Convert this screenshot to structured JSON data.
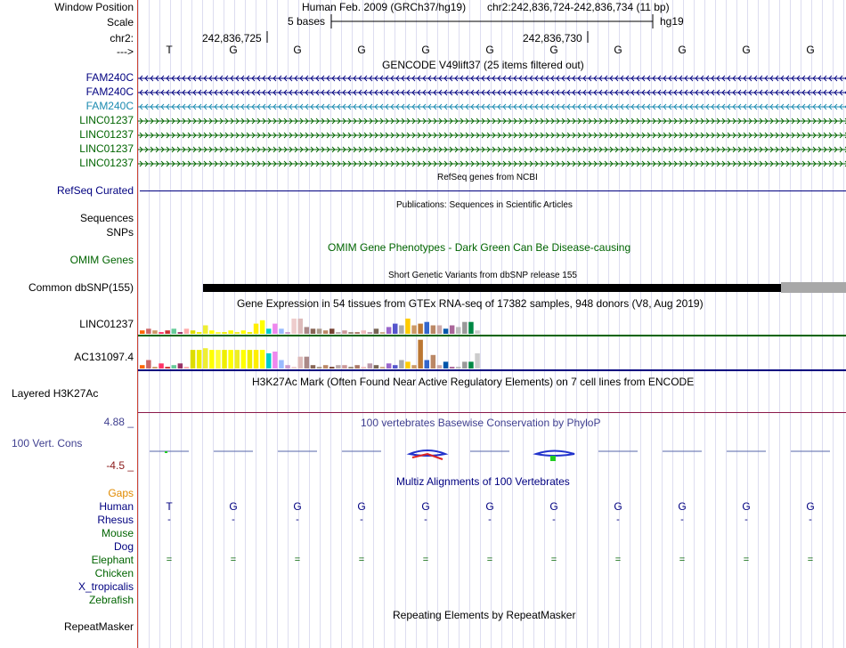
{
  "header": {
    "window_position_label": "Window Position",
    "scale_label": "Scale",
    "chr_label": "chr2:",
    "strand_label": "--->",
    "assembly_text": "Human Feb. 2009 (GRCh37/hg19)",
    "position_text": "chr2:242,836,724-242,836,734 (11 bp)",
    "scale_text": "5 bases",
    "scale_db": "hg19",
    "coord_1": "242,836,725",
    "coord_2": "242,836,730",
    "sequence": [
      "T",
      "G",
      "G",
      "G",
      "G",
      "G",
      "G",
      "G",
      "G",
      "G",
      "G"
    ]
  },
  "tracks": {
    "gencode_title": "GENCODE V49lift37 (25 items filtered out)",
    "gencode_items": [
      {
        "label": "FAM240C",
        "strand": "minus",
        "color": "#000080"
      },
      {
        "label": "FAM240C",
        "strand": "minus",
        "color": "#000080"
      },
      {
        "label": "FAM240C",
        "strand": "minus",
        "color": "#1a8ab0"
      },
      {
        "label": "LINC01237",
        "strand": "plus",
        "color": "#006400"
      },
      {
        "label": "LINC01237",
        "strand": "plus",
        "color": "#006400"
      },
      {
        "label": "LINC01237",
        "strand": "plus",
        "color": "#006400"
      },
      {
        "label": "LINC01237",
        "strand": "plus",
        "color": "#006400"
      }
    ],
    "refseq_title": "RefSeq genes from NCBI",
    "refseq_label": "RefSeq Curated",
    "publications_title": "Publications: Sequences in Scientific Articles",
    "sequences_label": "Sequences",
    "snps_label": "SNPs",
    "omim_title": "OMIM Gene Phenotypes - Dark Green Can Be Disease-causing",
    "omim_label": "OMIM Genes",
    "dbsnp_title": "Short Genetic Variants from dbSNP release 155",
    "dbsnp_label": "Common dbSNP(155)",
    "gtex_title": "Gene Expression in 54 tissues from GTEx RNA-seq of 17382 samples, 948 donors (V8, Aug 2019)",
    "gtex_label_1": "LINC01237",
    "gtex_label_2": "AC131097.4",
    "h3k27_title": "H3K27Ac Mark (Often Found Near Active Regulatory Elements) on 7 cell lines from ENCODE",
    "h3k27_label": "Layered H3K27Ac",
    "phylop_title": "100 vertebrates Basewise Conservation by PhyloP",
    "phylop_label": "100 Vert. Cons",
    "phylop_max": "4.88 _",
    "phylop_min": "-4.5 _",
    "multiz_title": "Multiz Alignments of 100 Vertebrates",
    "gaps_label": "Gaps",
    "species": [
      {
        "name": "Human",
        "row": [
          "T",
          "G",
          "G",
          "G",
          "G",
          "G",
          "G",
          "G",
          "G",
          "G",
          "G"
        ]
      },
      {
        "name": "Rhesus",
        "row": [
          "-",
          "-",
          "-",
          "-",
          "-",
          "-",
          "-",
          "-",
          "-",
          "-",
          "-"
        ]
      },
      {
        "name": "Mouse",
        "row": []
      },
      {
        "name": "Dog",
        "row": []
      },
      {
        "name": "Elephant",
        "row": [
          "=",
          "=",
          "=",
          "=",
          "=",
          "=",
          "=",
          "=",
          "=",
          "=",
          "="
        ]
      },
      {
        "name": "Chicken",
        "row": []
      },
      {
        "name": "X_tropicalis",
        "row": []
      },
      {
        "name": "Zebrafish",
        "row": []
      }
    ],
    "repeat_title": "Repeating Elements by RepeatMasker",
    "repeat_label": "RepeatMasker"
  },
  "colors": {
    "navy": "#000080",
    "green": "#006400",
    "teal": "#1a8ab0",
    "orange": "#e08a00",
    "phylop_title": "#404090",
    "phylop_min": "#8b1a1a",
    "h3k27_line": "#8b1a4a"
  },
  "chart_data": [
    {
      "type": "bar",
      "title": "Gene Expression in 54 tissues from GTEx RNA-seq of 17382 samples, 948 donors (V8, Aug 2019)",
      "series": [
        {
          "name": "LINC01237",
          "values": [
            2,
            3,
            2,
            1,
            2,
            3,
            1,
            3,
            2,
            1,
            5,
            2,
            1,
            1,
            2,
            1,
            2,
            1,
            6,
            8,
            3,
            6,
            3,
            1,
            9,
            9,
            4,
            3,
            3,
            2,
            3,
            1,
            2,
            1,
            1,
            2,
            1,
            3,
            1,
            4,
            6,
            5,
            9,
            5,
            6,
            7,
            5,
            5,
            3,
            5,
            4,
            7,
            7,
            2
          ]
        },
        {
          "name": "AC131097.4",
          "values": [
            2,
            5,
            1,
            3,
            1,
            2,
            3,
            1,
            11,
            11,
            12,
            11,
            11,
            11,
            11,
            11,
            11,
            11,
            11,
            11,
            9,
            10,
            5,
            2,
            1,
            7,
            7,
            2,
            1,
            2,
            1,
            2,
            2,
            1,
            2,
            1,
            3,
            2,
            1,
            3,
            2,
            5,
            4,
            2,
            17,
            5,
            8,
            2,
            4,
            1,
            1,
            4,
            4,
            9
          ]
        }
      ]
    }
  ]
}
